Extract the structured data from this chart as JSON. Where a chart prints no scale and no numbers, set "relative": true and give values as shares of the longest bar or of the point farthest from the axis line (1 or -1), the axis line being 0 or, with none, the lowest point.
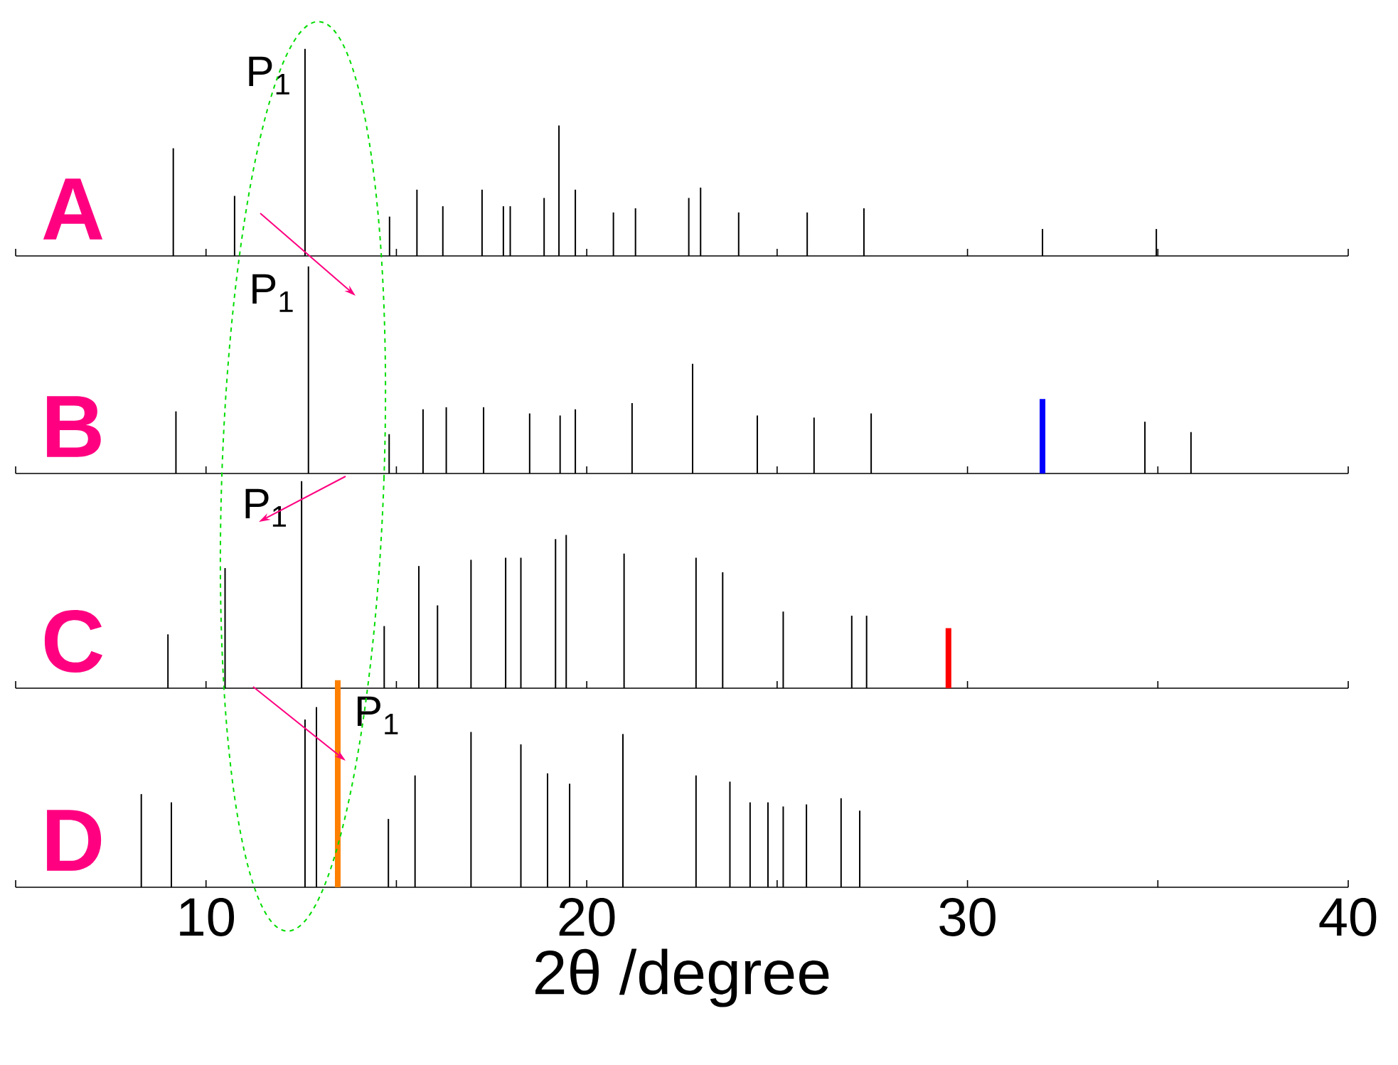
{
  "chart_data": [
    {
      "type": "bar",
      "relative": true,
      "title": "A",
      "xlim": [
        5,
        40
      ],
      "xticks": [
        {
          "value": 5,
          "label": null
        },
        10,
        {
          "value": 15,
          "label": null
        },
        20,
        {
          "value": 25,
          "label": null
        },
        30,
        {
          "value": 35,
          "label": null
        },
        40
      ],
      "tick_labels": false,
      "series": [
        {
          "color": "#000000",
          "x": [
            9.14,
            10.75,
            12.6,
            14.82,
            15.54,
            16.22,
            17.25,
            17.81,
            17.99,
            18.88,
            19.27,
            19.7,
            20.7,
            21.28,
            22.68,
            22.99,
            23.99,
            25.79,
            27.28,
            31.97,
            34.96
          ],
          "values": [
            0.52,
            0.29,
            1,
            0.19,
            0.32,
            0.24,
            0.32,
            0.24,
            0.24,
            0.28,
            0.63,
            0.32,
            0.21,
            0.23,
            0.28,
            0.33,
            0.21,
            0.21,
            0.23,
            0.13,
            0.13
          ]
        }
      ],
      "annotations": [
        {
          "text": "P$_{1}$",
          "x": 12.6,
          "y": 1
        }
      ]
    },
    {
      "type": "bar",
      "relative": true,
      "title": "B",
      "xlim": [
        5,
        40
      ],
      "xticks": [
        {
          "value": 5,
          "label": null
        },
        10,
        {
          "value": 15,
          "label": null
        },
        20,
        {
          "value": 25,
          "label": null
        },
        30,
        {
          "value": 35,
          "label": null
        },
        40
      ],
      "tick_labels": false,
      "series": [
        {
          "color": "#000000",
          "x": [
            9.21,
            12.69,
            14.81,
            15.7,
            16.31,
            17.29,
            18.5,
            19.3,
            19.7,
            21.19,
            22.78,
            24.48,
            25.97,
            27.47,
            34.66,
            35.87
          ],
          "values": [
            0.3,
            1,
            0.19,
            0.31,
            0.32,
            0.32,
            0.29,
            0.28,
            0.31,
            0.34,
            0.53,
            0.28,
            0.27,
            0.29,
            0.25,
            0.2
          ]
        },
        {
          "color": "#0000ff",
          "x": [
            31.97
          ],
          "values": [
            0.36
          ]
        }
      ],
      "annotations": [
        {
          "text": "P$_{1}$",
          "x": 12.69,
          "y": 1
        }
      ]
    },
    {
      "type": "bar",
      "relative": true,
      "title": "C",
      "xlim": [
        5,
        40
      ],
      "xticks": [
        {
          "value": 5,
          "label": null
        },
        10,
        {
          "value": 15,
          "label": null
        },
        20,
        {
          "value": 25,
          "label": null
        },
        30,
        {
          "value": 35,
          "label": null
        },
        40
      ],
      "tick_labels": false,
      "series": [
        {
          "color": "#000000",
          "x": [
            9.0,
            10.5,
            12.51,
            14.68,
            15.59,
            16.08,
            16.96,
            17.87,
            18.27,
            19.18,
            19.46,
            20.98,
            22.87,
            23.57,
            25.16,
            26.96,
            27.35
          ],
          "values": [
            0.26,
            0.58,
            1,
            0.3,
            0.59,
            0.4,
            0.62,
            0.63,
            0.63,
            0.72,
            0.74,
            0.65,
            0.63,
            0.56,
            0.37,
            0.35,
            0.35
          ]
        },
        {
          "color": "#ff0000",
          "x": [
            29.5
          ],
          "values": [
            0.29
          ]
        }
      ],
      "annotations": [
        {
          "text": "P$_{1}$",
          "x": 12.51,
          "y": 1
        }
      ]
    },
    {
      "type": "bar",
      "relative": true,
      "title": "D",
      "xlabel": "2θ /degree",
      "xlim": [
        5,
        40
      ],
      "xticks": [
        {
          "value": 5,
          "label": null
        },
        10,
        {
          "value": 15,
          "label": null
        },
        20,
        {
          "value": 25,
          "label": null
        },
        30,
        {
          "value": 35,
          "label": null
        },
        40
      ],
      "tick_labels": "x",
      "series": [
        {
          "color": "#000000",
          "x": [
            8.3,
            9.09,
            12.6,
            12.9,
            14.79,
            15.49,
            16.96,
            18.27,
            18.97,
            19.55,
            20.95,
            22.87,
            23.76,
            24.29,
            24.76,
            25.16,
            25.77,
            26.68,
            27.17
          ],
          "values": [
            0.45,
            0.41,
            0.81,
            0.87,
            0.33,
            0.54,
            0.75,
            0.69,
            0.55,
            0.5,
            0.74,
            0.54,
            0.51,
            0.41,
            0.41,
            0.39,
            0.4,
            0.43,
            0.37
          ]
        },
        {
          "color": "#ff8000",
          "x": [
            13.46
          ],
          "values": [
            1
          ]
        }
      ],
      "annotations": [
        {
          "text": "P$_{1}$",
          "x": 13.46,
          "y": 1
        }
      ]
    }
  ]
}
